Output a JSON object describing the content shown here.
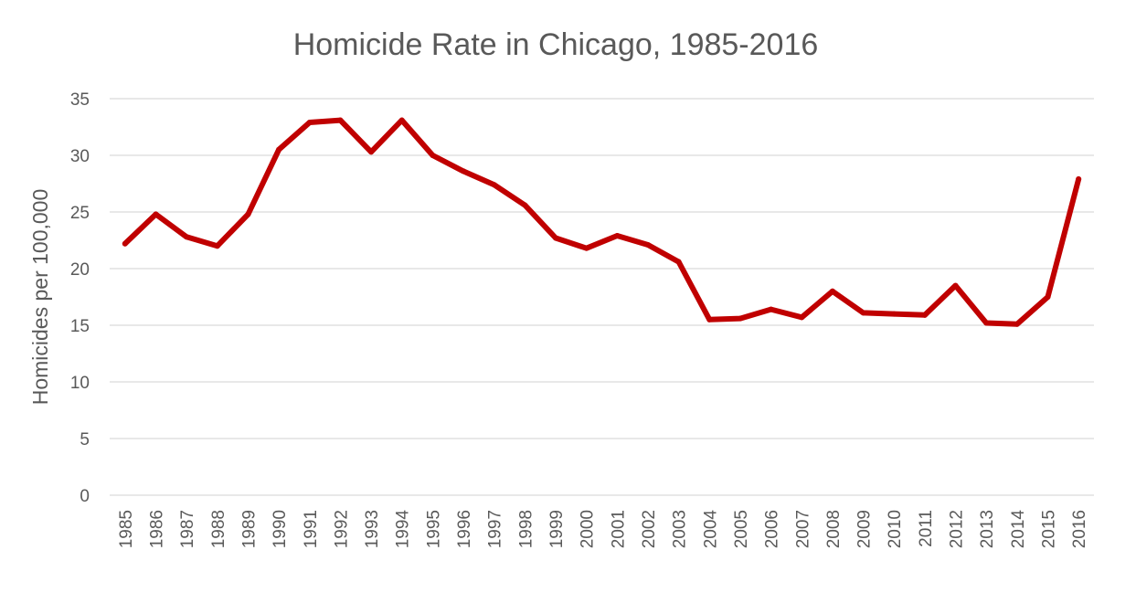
{
  "chart_data": {
    "type": "line",
    "title": "Homicide Rate in Chicago, 1985-2016",
    "xlabel": "",
    "ylabel": "Homicides per 100,000",
    "ylim": [
      0,
      35
    ],
    "yticks": [
      "0",
      "5",
      "10",
      "15",
      "20",
      "25",
      "30",
      "35"
    ],
    "grid": true,
    "legend": "none",
    "categories": [
      "1985",
      "1986",
      "1987",
      "1988",
      "1989",
      "1990",
      "1991",
      "1992",
      "1993",
      "1994",
      "1995",
      "1996",
      "1997",
      "1998",
      "1999",
      "2000",
      "2001",
      "2002",
      "2003",
      "2004",
      "2005",
      "2006",
      "2007",
      "2008",
      "2009",
      "2010",
      "2011",
      "2012",
      "2013",
      "2014",
      "2015",
      "2016"
    ],
    "series": [
      {
        "color": "#c00000",
        "values": [
          22.2,
          24.8,
          22.8,
          22.0,
          24.8,
          30.5,
          32.9,
          33.1,
          30.3,
          33.1,
          30.0,
          28.6,
          27.4,
          25.6,
          22.7,
          21.8,
          22.9,
          22.1,
          20.6,
          15.5,
          15.6,
          16.4,
          15.7,
          18.0,
          16.1,
          16.0,
          15.9,
          18.5,
          15.2,
          15.1,
          17.5,
          27.9
        ]
      }
    ]
  }
}
